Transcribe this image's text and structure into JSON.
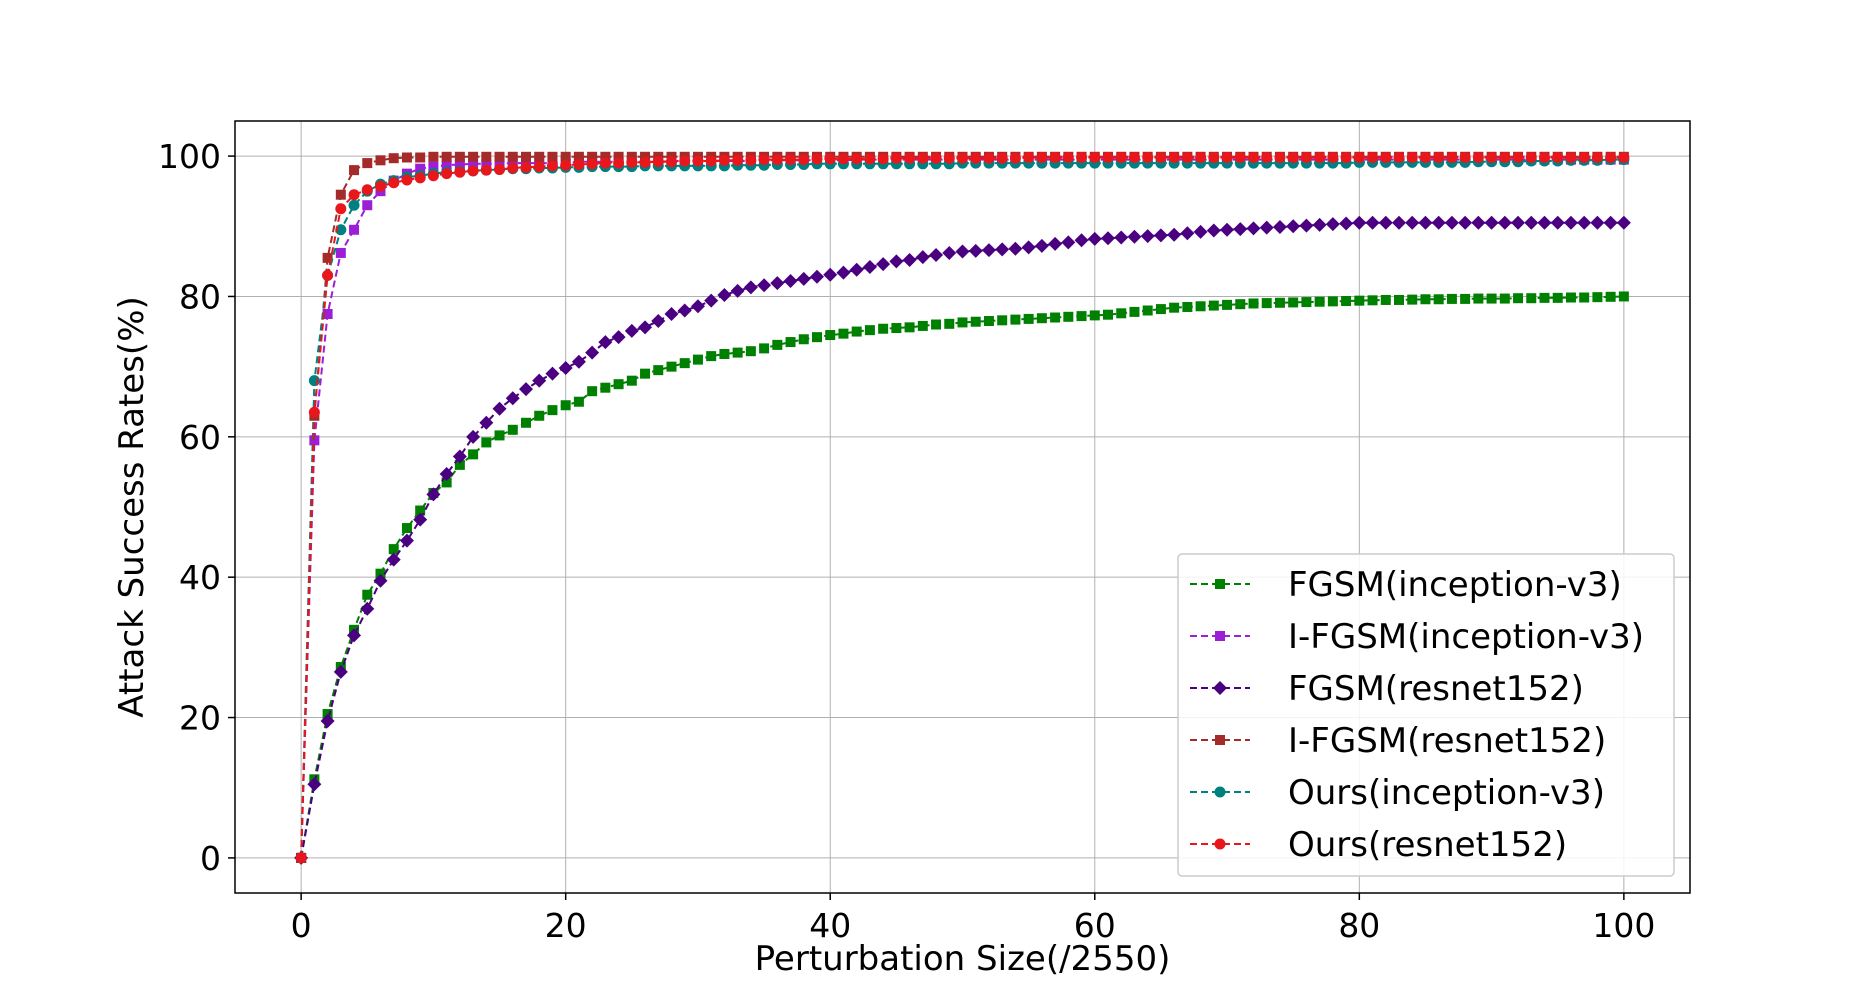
{
  "chart_data": {
    "type": "line",
    "title": "",
    "xlabel": "Perturbation Size(/2550)",
    "ylabel": "Attack Success Rates(%)",
    "xlim": [
      -5,
      105
    ],
    "ylim": [
      -5,
      105
    ],
    "xticks": [
      0,
      20,
      40,
      60,
      80,
      100
    ],
    "yticks": [
      0,
      20,
      40,
      60,
      80,
      100
    ],
    "grid": true,
    "legend_position": "lower-right",
    "x": [
      0,
      1,
      2,
      3,
      4,
      5,
      6,
      7,
      8,
      9,
      10,
      11,
      12,
      13,
      14,
      15,
      16,
      17,
      18,
      19,
      20,
      21,
      22,
      23,
      24,
      25,
      26,
      27,
      28,
      29,
      30,
      31,
      32,
      33,
      34,
      35,
      36,
      37,
      38,
      39,
      40,
      41,
      42,
      43,
      44,
      45,
      46,
      47,
      48,
      49,
      50,
      51,
      52,
      53,
      54,
      55,
      56,
      57,
      58,
      59,
      60,
      61,
      62,
      63,
      64,
      65,
      66,
      67,
      68,
      69,
      70,
      71,
      72,
      73,
      74,
      75,
      76,
      77,
      78,
      79,
      80,
      81,
      82,
      83,
      84,
      85,
      86,
      87,
      88,
      89,
      90,
      91,
      92,
      93,
      94,
      95,
      96,
      97,
      98,
      99,
      100
    ],
    "series": [
      {
        "name": "FGSM(inception-v3)",
        "color": "#008000",
        "marker": "square",
        "values": [
          0,
          11.2,
          20.5,
          27.2,
          32.5,
          37.5,
          40.5,
          44,
          47,
          49.5,
          52,
          53.5,
          56,
          57.5,
          59.2,
          60.2,
          61,
          62,
          63,
          63.8,
          64.5,
          65,
          66.5,
          67,
          67.5,
          68,
          69,
          69.5,
          70,
          70.5,
          71,
          71.5,
          71.8,
          72,
          72.2,
          72.6,
          73.1,
          73.5,
          73.9,
          74.2,
          74.5,
          74.7,
          75,
          75.2,
          75.4,
          75.5,
          75.6,
          75.8,
          76,
          76.1,
          76.3,
          76.4,
          76.5,
          76.6,
          76.7,
          76.8,
          76.9,
          77,
          77.1,
          77.2,
          77.3,
          77.4,
          77.6,
          77.8,
          78,
          78.2,
          78.4,
          78.5,
          78.6,
          78.7,
          78.8,
          78.9,
          79,
          79.05,
          79.1,
          79.15,
          79.2,
          79.25,
          79.3,
          79.35,
          79.4,
          79.45,
          79.5,
          79.5,
          79.55,
          79.6,
          79.6,
          79.65,
          79.65,
          79.7,
          79.7,
          79.7,
          79.75,
          79.75,
          79.8,
          79.8,
          79.85,
          79.85,
          79.9,
          79.95,
          80
        ]
      },
      {
        "name": "I-FGSM(inception-v3)",
        "color": "#9b1fd6",
        "marker": "square",
        "values": [
          0,
          59.5,
          77.5,
          86.2,
          89.5,
          93,
          95,
          96.5,
          97.5,
          98.2,
          98.5,
          98.7,
          98.8,
          98.9,
          98.9,
          98.9,
          99,
          99,
          99,
          99,
          99,
          99.2,
          99.2,
          99.2,
          99.2,
          99.2,
          99.2,
          99.2,
          99.3,
          99.3,
          99.3,
          99.3,
          99.3,
          99.3,
          99.3,
          99.4,
          99.4,
          99.4,
          99.4,
          99.4,
          99.4,
          99.4,
          99.5,
          99.5,
          99.5,
          99.5,
          99.5,
          99.5,
          99.5,
          99.5,
          99.5,
          99.5,
          99.5,
          99.5,
          99.5,
          99.5,
          99.5,
          99.5,
          99.5,
          99.5,
          99.5,
          99.5,
          99.5,
          99.5,
          99.5,
          99.5,
          99.5,
          99.5,
          99.5,
          99.5,
          99.5,
          99.5,
          99.5,
          99.5,
          99.5,
          99.5,
          99.5,
          99.5,
          99.5,
          99.5,
          99.5,
          99.5,
          99.5,
          99.5,
          99.5,
          99.5,
          99.5,
          99.5,
          99.5,
          99.5,
          99.5,
          99.5,
          99.5,
          99.5,
          99.5,
          99.5,
          99.5,
          99.5,
          99.5,
          99.5,
          99.5
        ]
      },
      {
        "name": "FGSM(resnet152)",
        "color": "#4b0082",
        "marker": "diamond",
        "values": [
          0,
          10.5,
          19.5,
          26.5,
          31.7,
          35.5,
          39.5,
          42.5,
          45.2,
          48.2,
          51.8,
          54.7,
          57.2,
          60,
          62,
          64,
          65.5,
          66.8,
          68,
          69,
          69.8,
          70.7,
          72,
          73.5,
          74.2,
          75.1,
          75.6,
          76.5,
          77.5,
          78,
          78.6,
          79.4,
          80.2,
          80.8,
          81.3,
          81.6,
          81.9,
          82.2,
          82.5,
          82.8,
          83.1,
          83.4,
          83.8,
          84.2,
          84.6,
          85,
          85.2,
          85.6,
          85.9,
          86.2,
          86.4,
          86.5,
          86.6,
          86.7,
          86.8,
          87,
          87.2,
          87.5,
          87.7,
          88,
          88.2,
          88.3,
          88.4,
          88.5,
          88.6,
          88.7,
          88.8,
          89,
          89.2,
          89.4,
          89.5,
          89.6,
          89.7,
          89.8,
          89.9,
          90,
          90.1,
          90.2,
          90.3,
          90.4,
          90.5,
          90.5,
          90.5,
          90.5,
          90.5,
          90.5,
          90.5,
          90.5,
          90.5,
          90.5,
          90.5,
          90.5,
          90.5,
          90.5,
          90.5,
          90.5,
          90.5,
          90.5,
          90.5,
          90.5,
          90.5
        ]
      },
      {
        "name": "I-FGSM(resnet152)",
        "color": "#a52a2a",
        "marker": "square",
        "values": [
          0,
          63,
          85.5,
          94.5,
          98,
          99,
          99.4,
          99.7,
          99.8,
          99.8,
          99.9,
          99.9,
          99.9,
          99.9,
          99.9,
          99.9,
          99.9,
          99.9,
          99.9,
          99.9,
          99.9,
          99.9,
          99.9,
          99.9,
          99.9,
          99.9,
          99.9,
          99.9,
          99.9,
          99.9,
          99.9,
          99.9,
          99.9,
          99.9,
          99.9,
          99.9,
          99.9,
          99.9,
          99.9,
          99.9,
          99.9,
          99.9,
          99.9,
          99.9,
          99.9,
          99.9,
          99.9,
          99.9,
          99.9,
          99.9,
          99.9,
          99.9,
          99.9,
          99.9,
          99.9,
          99.9,
          99.9,
          99.9,
          99.9,
          99.9,
          99.9,
          99.9,
          99.9,
          99.9,
          99.9,
          99.9,
          99.9,
          99.9,
          99.9,
          99.9,
          99.9,
          99.9,
          99.9,
          99.9,
          99.9,
          99.9,
          99.9,
          99.9,
          99.9,
          99.9,
          99.9,
          99.9,
          99.9,
          99.9,
          99.9,
          99.9,
          99.9,
          99.9,
          99.9,
          99.9,
          99.9,
          99.9,
          99.9,
          99.9,
          99.9,
          99.9,
          99.9,
          99.9,
          99.9,
          99.9,
          99.9
        ]
      },
      {
        "name": "Ours(inception-v3)",
        "color": "#008080",
        "marker": "circle",
        "values": [
          0,
          68,
          83,
          89.5,
          93,
          95,
          96,
          96.5,
          97,
          97.2,
          97.5,
          97.7,
          97.8,
          97.9,
          98,
          98.1,
          98.2,
          98.2,
          98.3,
          98.3,
          98.4,
          98.4,
          98.5,
          98.5,
          98.5,
          98.5,
          98.6,
          98.6,
          98.6,
          98.6,
          98.6,
          98.6,
          98.6,
          98.7,
          98.7,
          98.7,
          98.8,
          98.8,
          98.8,
          98.9,
          98.9,
          98.9,
          98.9,
          98.9,
          98.9,
          98.9,
          98.9,
          98.9,
          98.9,
          98.9,
          99,
          99,
          99,
          99,
          99,
          99,
          99,
          99,
          99,
          99,
          99,
          99,
          99,
          99,
          99,
          99,
          99,
          99,
          99,
          99,
          99,
          99,
          99,
          99,
          99,
          99,
          99,
          99,
          99,
          99,
          99.1,
          99.1,
          99.1,
          99.1,
          99.1,
          99.1,
          99.1,
          99.1,
          99.1,
          99.2,
          99.2,
          99.2,
          99.2,
          99.3,
          99.3,
          99.3,
          99.4,
          99.4,
          99.4,
          99.5,
          99.5
        ]
      },
      {
        "name": "Ours(resnet152)",
        "color": "#e8171b",
        "marker": "circle",
        "values": [
          0,
          63.5,
          83,
          92.5,
          94.5,
          95.2,
          95.7,
          96.2,
          96.6,
          96.9,
          97.2,
          97.5,
          97.7,
          97.9,
          98,
          98.1,
          98.3,
          98.4,
          98.5,
          98.6,
          98.7,
          98.8,
          98.9,
          99,
          99,
          99.1,
          99.1,
          99.2,
          99.2,
          99.3,
          99.3,
          99.3,
          99.4,
          99.4,
          99.4,
          99.5,
          99.5,
          99.5,
          99.5,
          99.6,
          99.6,
          99.6,
          99.6,
          99.6,
          99.6,
          99.7,
          99.7,
          99.7,
          99.7,
          99.7,
          99.7,
          99.7,
          99.7,
          99.7,
          99.7,
          99.8,
          99.8,
          99.8,
          99.8,
          99.8,
          99.8,
          99.8,
          99.8,
          99.8,
          99.8,
          99.8,
          99.8,
          99.8,
          99.8,
          99.8,
          99.8,
          99.8,
          99.8,
          99.8,
          99.8,
          99.8,
          99.8,
          99.8,
          99.8,
          99.8,
          99.8,
          99.8,
          99.8,
          99.8,
          99.8,
          99.8,
          99.8,
          99.8,
          99.8,
          99.8,
          99.8,
          99.8,
          99.8,
          99.8,
          99.8,
          99.8,
          99.8,
          99.8,
          99.8,
          99.8,
          99.8
        ]
      }
    ]
  }
}
